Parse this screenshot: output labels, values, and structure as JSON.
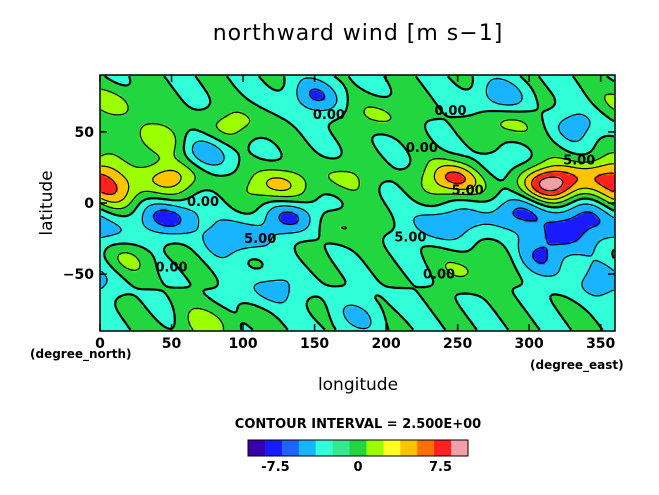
{
  "chart_data": {
    "type": "heatmap",
    "title": "northward wind [m s−1]",
    "xlabel": "longitude",
    "ylabel": "latitude",
    "x_unit_label": "(degree_east)",
    "y_unit_label": "(degree_north)",
    "xlim": [
      0,
      360
    ],
    "ylim": [
      -90,
      90
    ],
    "x_ticks": [
      0,
      50,
      100,
      150,
      200,
      250,
      300,
      350
    ],
    "y_ticks": [
      -50,
      0,
      50
    ],
    "contour_interval_text": "CONTOUR INTERVAL = 2.500E+00",
    "contour_levels": [
      -10,
      -7.5,
      -5,
      -2.5,
      0,
      2.5,
      5,
      7.5,
      10
    ],
    "colorbar": {
      "tick_labels": [
        "-7.5",
        "0",
        "7.5"
      ],
      "tick_values": [
        -7.5,
        0,
        7.5
      ],
      "colors": [
        "#3a00a8",
        "#1a1aff",
        "#1e64ff",
        "#19b4ff",
        "#30ffd8",
        "#34e890",
        "#22d640",
        "#9cff00",
        "#ffff22",
        "#ffc400",
        "#ff7000",
        "#ff2020",
        "#f2a0a8"
      ]
    },
    "contour_labels": [
      {
        "text": "0.00",
        "lon": 245,
        "lat": 62
      },
      {
        "text": "0.00",
        "lon": 160,
        "lat": 59
      },
      {
        "text": "0.00",
        "lon": 225,
        "lat": 36
      },
      {
        "text": "5.00",
        "lon": 335,
        "lat": 27
      },
      {
        "text": "5.00",
        "lon": 257,
        "lat": 6
      },
      {
        "text": "0.00",
        "lon": 72,
        "lat": -2
      },
      {
        "text": "5.00",
        "lon": 217,
        "lat": -27
      },
      {
        "text": "0.00",
        "lon": 50,
        "lat": -48
      },
      {
        "text": "5.00",
        "lon": 112,
        "lat": -28
      },
      {
        "text": "0.00",
        "lon": 237,
        "lat": -53
      }
    ],
    "extrema": [
      {
        "lon": 250,
        "lat": 18,
        "value": 9.5
      },
      {
        "lon": 320,
        "lat": 15,
        "value": 6.5
      },
      {
        "lon": 355,
        "lat": 20,
        "value": 6.0
      },
      {
        "lon": 310,
        "lat": 12,
        "value": 5.5
      },
      {
        "lon": 122,
        "lat": 12,
        "value": 6.0
      },
      {
        "lon": 50,
        "lat": 18,
        "value": 6.0
      },
      {
        "lon": 10,
        "lat": 8,
        "value": 5.5
      },
      {
        "lon": 40,
        "lat": 45,
        "value": 4.0
      },
      {
        "lon": 95,
        "lat": 55,
        "value": 3.5
      },
      {
        "lon": 285,
        "lat": 55,
        "value": 3.5
      },
      {
        "lon": 10,
        "lat": 70,
        "value": 3.5
      },
      {
        "lon": 195,
        "lat": 62,
        "value": 3.0
      },
      {
        "lon": 170,
        "lat": 18,
        "value": 3.0
      },
      {
        "lon": 75,
        "lat": -85,
        "value": 3.5
      },
      {
        "lon": 170,
        "lat": -15,
        "value": 3.0
      },
      {
        "lon": 260,
        "lat": -45,
        "value": 3.0
      },
      {
        "lon": 20,
        "lat": -40,
        "value": 2.5
      },
      {
        "lon": 50,
        "lat": -10,
        "value": -6.0
      },
      {
        "lon": 135,
        "lat": -10,
        "value": -5.5
      },
      {
        "lon": 290,
        "lat": -7,
        "value": -5.5
      },
      {
        "lon": 240,
        "lat": -15,
        "value": -5.0
      },
      {
        "lon": 335,
        "lat": -10,
        "value": -5.0
      },
      {
        "lon": 95,
        "lat": -25,
        "value": -5.0
      },
      {
        "lon": 320,
        "lat": -25,
        "value": -4.5
      },
      {
        "lon": 150,
        "lat": 75,
        "value": -4.5
      },
      {
        "lon": 75,
        "lat": 35,
        "value": -4.0
      },
      {
        "lon": 280,
        "lat": 75,
        "value": -4.0
      },
      {
        "lon": 335,
        "lat": 55,
        "value": -3.5
      },
      {
        "lon": 270,
        "lat": 25,
        "value": -3.5
      },
      {
        "lon": 350,
        "lat": -55,
        "value": -4.0
      },
      {
        "lon": 120,
        "lat": -60,
        "value": -3.5
      },
      {
        "lon": 310,
        "lat": -40,
        "value": -3.5
      },
      {
        "lon": 180,
        "lat": -80,
        "value": -2.5
      },
      {
        "lon": 5,
        "lat": -20,
        "value": -3.0
      }
    ]
  }
}
